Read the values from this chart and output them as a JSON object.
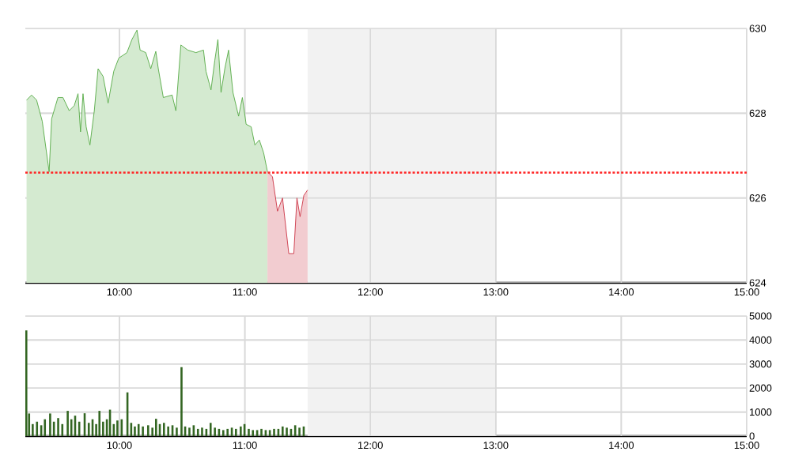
{
  "chart_data": [
    {
      "type": "area",
      "xlim": [
        9.25,
        15
      ],
      "ylim": [
        624,
        630
      ],
      "xticks": [
        {
          "value": 10,
          "label": "10:00"
        },
        {
          "value": 11,
          "label": "11:00"
        },
        {
          "value": 12,
          "label": "12:00"
        },
        {
          "value": 13,
          "label": "13:00"
        },
        {
          "value": 14,
          "label": "14:00"
        },
        {
          "value": 15,
          "label": "15:00"
        }
      ],
      "yticks": [
        624,
        626,
        628,
        630
      ],
      "grid": true,
      "bands": [
        {
          "axis": "x",
          "from": 11.5,
          "to": 13,
          "color": "#f2f2f2"
        }
      ],
      "ref_lines": [
        {
          "axis": "y",
          "value": 626.6,
          "color": "#ff2222",
          "line_style": "dotted"
        }
      ],
      "series": [
        {
          "color": "#55aa44",
          "x": [
            9.26,
            9.3,
            9.34,
            9.385,
            9.44,
            9.46,
            9.51,
            9.55,
            9.6,
            9.64,
            9.67,
            9.69,
            9.71,
            9.735,
            9.765,
            9.8,
            9.83,
            9.87,
            9.91,
            9.955,
            9.995,
            10.06,
            10.1,
            10.14,
            10.165,
            10.21,
            10.25,
            10.29,
            10.31,
            10.35,
            10.42,
            10.45,
            10.49,
            10.545,
            10.61,
            10.67,
            10.69,
            10.73,
            10.76,
            10.785,
            10.81,
            10.84,
            10.87,
            10.905,
            10.95,
            10.98,
            11.01,
            11.05,
            11.08,
            11.115,
            11.15,
            11.18
          ],
          "values": [
            628.31,
            628.43,
            628.31,
            627.81,
            626.62,
            627.87,
            628.37,
            628.37,
            628.06,
            628.18,
            628.46,
            627.56,
            628.46,
            627.68,
            627.25,
            628.06,
            629.05,
            628.87,
            628.24,
            628.99,
            629.3,
            629.43,
            629.74,
            629.96,
            629.49,
            629.43,
            629.05,
            629.46,
            629.05,
            628.37,
            628.43,
            628.06,
            629.61,
            629.49,
            629.43,
            629.49,
            628.99,
            628.55,
            629.24,
            629.74,
            628.49,
            629.05,
            629.49,
            628.49,
            627.93,
            628.37,
            627.74,
            627.68,
            627.25,
            627.37,
            627.06,
            626.62
          ]
        },
        {
          "color": "#cc3344",
          "x": [
            11.18,
            11.22,
            11.26,
            11.3,
            11.35,
            11.39,
            11.415,
            11.44,
            11.47,
            11.5
          ],
          "values": [
            626.62,
            626.5,
            625.69,
            626.0,
            624.69,
            624.69,
            626.0,
            625.56,
            626.06,
            626.19
          ]
        }
      ]
    },
    {
      "type": "bar",
      "xlim": [
        9.25,
        15
      ],
      "ylim": [
        0,
        5000
      ],
      "color": "#336622",
      "xticks": [
        {
          "value": 10,
          "label": "10:00"
        },
        {
          "value": 11,
          "label": "11:00"
        },
        {
          "value": 12,
          "label": "12:00"
        },
        {
          "value": 13,
          "label": "13:00"
        },
        {
          "value": 14,
          "label": "14:00"
        },
        {
          "value": 15,
          "label": "15:00"
        }
      ],
      "yticks": [
        0,
        1000,
        2000,
        3000,
        4000,
        5000
      ],
      "grid": true,
      "bands": [
        {
          "axis": "x",
          "from": 11.5,
          "to": 13,
          "color": "#f2f2f2"
        }
      ],
      "x": [
        9.258,
        9.28,
        9.309,
        9.343,
        9.377,
        9.406,
        9.448,
        9.478,
        9.512,
        9.545,
        9.588,
        9.617,
        9.647,
        9.68,
        9.723,
        9.756,
        9.786,
        9.815,
        9.841,
        9.87,
        9.9,
        9.925,
        9.955,
        9.984,
        10.018,
        10.064,
        10.094,
        10.123,
        10.153,
        10.187,
        10.229,
        10.263,
        10.292,
        10.322,
        10.355,
        10.389,
        10.423,
        10.457,
        10.495,
        10.524,
        10.558,
        10.592,
        10.626,
        10.659,
        10.693,
        10.727,
        10.761,
        10.794,
        10.828,
        10.862,
        10.896,
        10.929,
        10.967,
        10.997,
        11.031,
        11.064,
        11.098,
        11.132,
        11.166,
        11.199,
        11.233,
        11.267,
        11.301,
        11.334,
        11.368,
        11.401,
        11.435,
        11.469
      ],
      "values": [
        4400,
        940,
        500,
        600,
        450,
        700,
        940,
        600,
        750,
        500,
        1050,
        700,
        850,
        600,
        950,
        550,
        700,
        500,
        1050,
        600,
        700,
        1100,
        500,
        650,
        700,
        1820,
        550,
        400,
        500,
        400,
        450,
        350,
        720,
        500,
        550,
        400,
        450,
        350,
        2870,
        400,
        350,
        450,
        300,
        350,
        300,
        550,
        350,
        300,
        250,
        300,
        350,
        300,
        400,
        500,
        300,
        250,
        250,
        300,
        250,
        250,
        300,
        300,
        400,
        350,
        300,
        450,
        350,
        400
      ]
    }
  ]
}
